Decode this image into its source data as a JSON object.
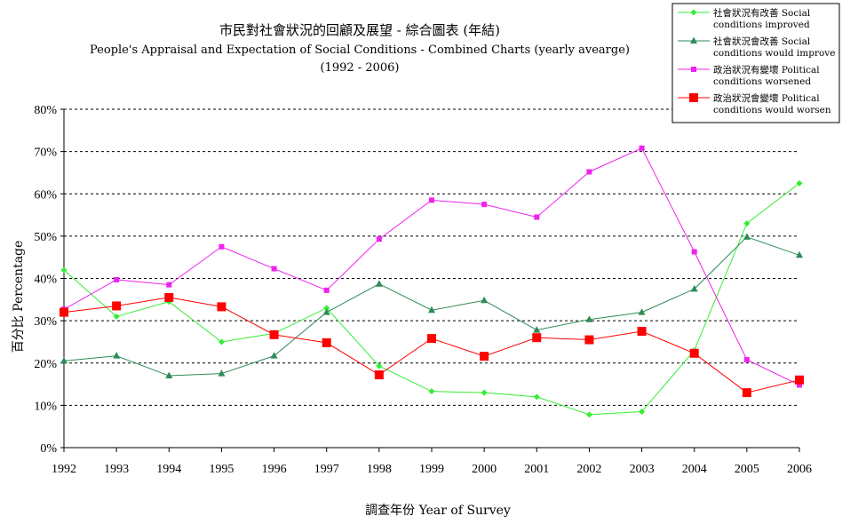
{
  "chart_data": {
    "type": "line",
    "title": "市民對社會狀況的回顧及展望 - 綜合圖表 (年結)",
    "subtitle": "People's Appraisal and Expectation of Social Conditions - Combined Charts  (yearly avearge)",
    "subtitle2": "(1992 - 2006)",
    "xlabel": "調查年份 Year of Survey",
    "ylabel": "百分比 Percentage",
    "ylim": [
      0,
      80
    ],
    "y_ticks": [
      "0%",
      "10%",
      "20%",
      "30%",
      "40%",
      "50%",
      "60%",
      "70%",
      "80%"
    ],
    "grid": "horizontal-dashed",
    "legend_position": "top-right",
    "x": [
      "1992",
      "1993",
      "1994",
      "1995",
      "1996",
      "1997",
      "1998",
      "1999",
      "2000",
      "2001",
      "2002",
      "2003",
      "2004",
      "2005",
      "2006"
    ],
    "series": [
      {
        "name_line1": "社會狀況有改善 Social",
        "name_line2": "conditions improved",
        "color": "#33ee33",
        "marker": "diamond",
        "values": [
          42,
          31,
          34.5,
          25,
          27,
          33,
          19.3,
          13.3,
          13,
          12,
          7.8,
          8.5,
          23,
          53,
          62.5
        ]
      },
      {
        "name_line1": "社會狀況會改善 Social",
        "name_line2": "conditions would improve",
        "color": "#2e8b57",
        "marker": "triangle",
        "values": [
          20.5,
          21.7,
          17,
          17.5,
          21.7,
          32,
          38.7,
          32.5,
          34.8,
          27.8,
          30.3,
          32,
          37.5,
          49.8,
          45.5
        ]
      },
      {
        "name_line1": "政治狀況有變壞 Political",
        "name_line2": "conditions worsened",
        "color": "#ee22ee",
        "marker": "square",
        "values": [
          32.7,
          39.7,
          38.5,
          47.5,
          42.3,
          37.2,
          49.3,
          58.5,
          57.5,
          54.5,
          65.2,
          70.8,
          46.3,
          20.8,
          14.8
        ]
      },
      {
        "name_line1": "政治狀況會變壞 Political",
        "name_line2": "conditions would worsen",
        "color": "#ff0000",
        "marker": "bigsquare",
        "values": [
          32,
          33.5,
          35.5,
          33.3,
          26.7,
          24.8,
          17.2,
          25.8,
          21.6,
          26,
          25.5,
          27.5,
          22.3,
          13,
          16
        ]
      }
    ]
  }
}
